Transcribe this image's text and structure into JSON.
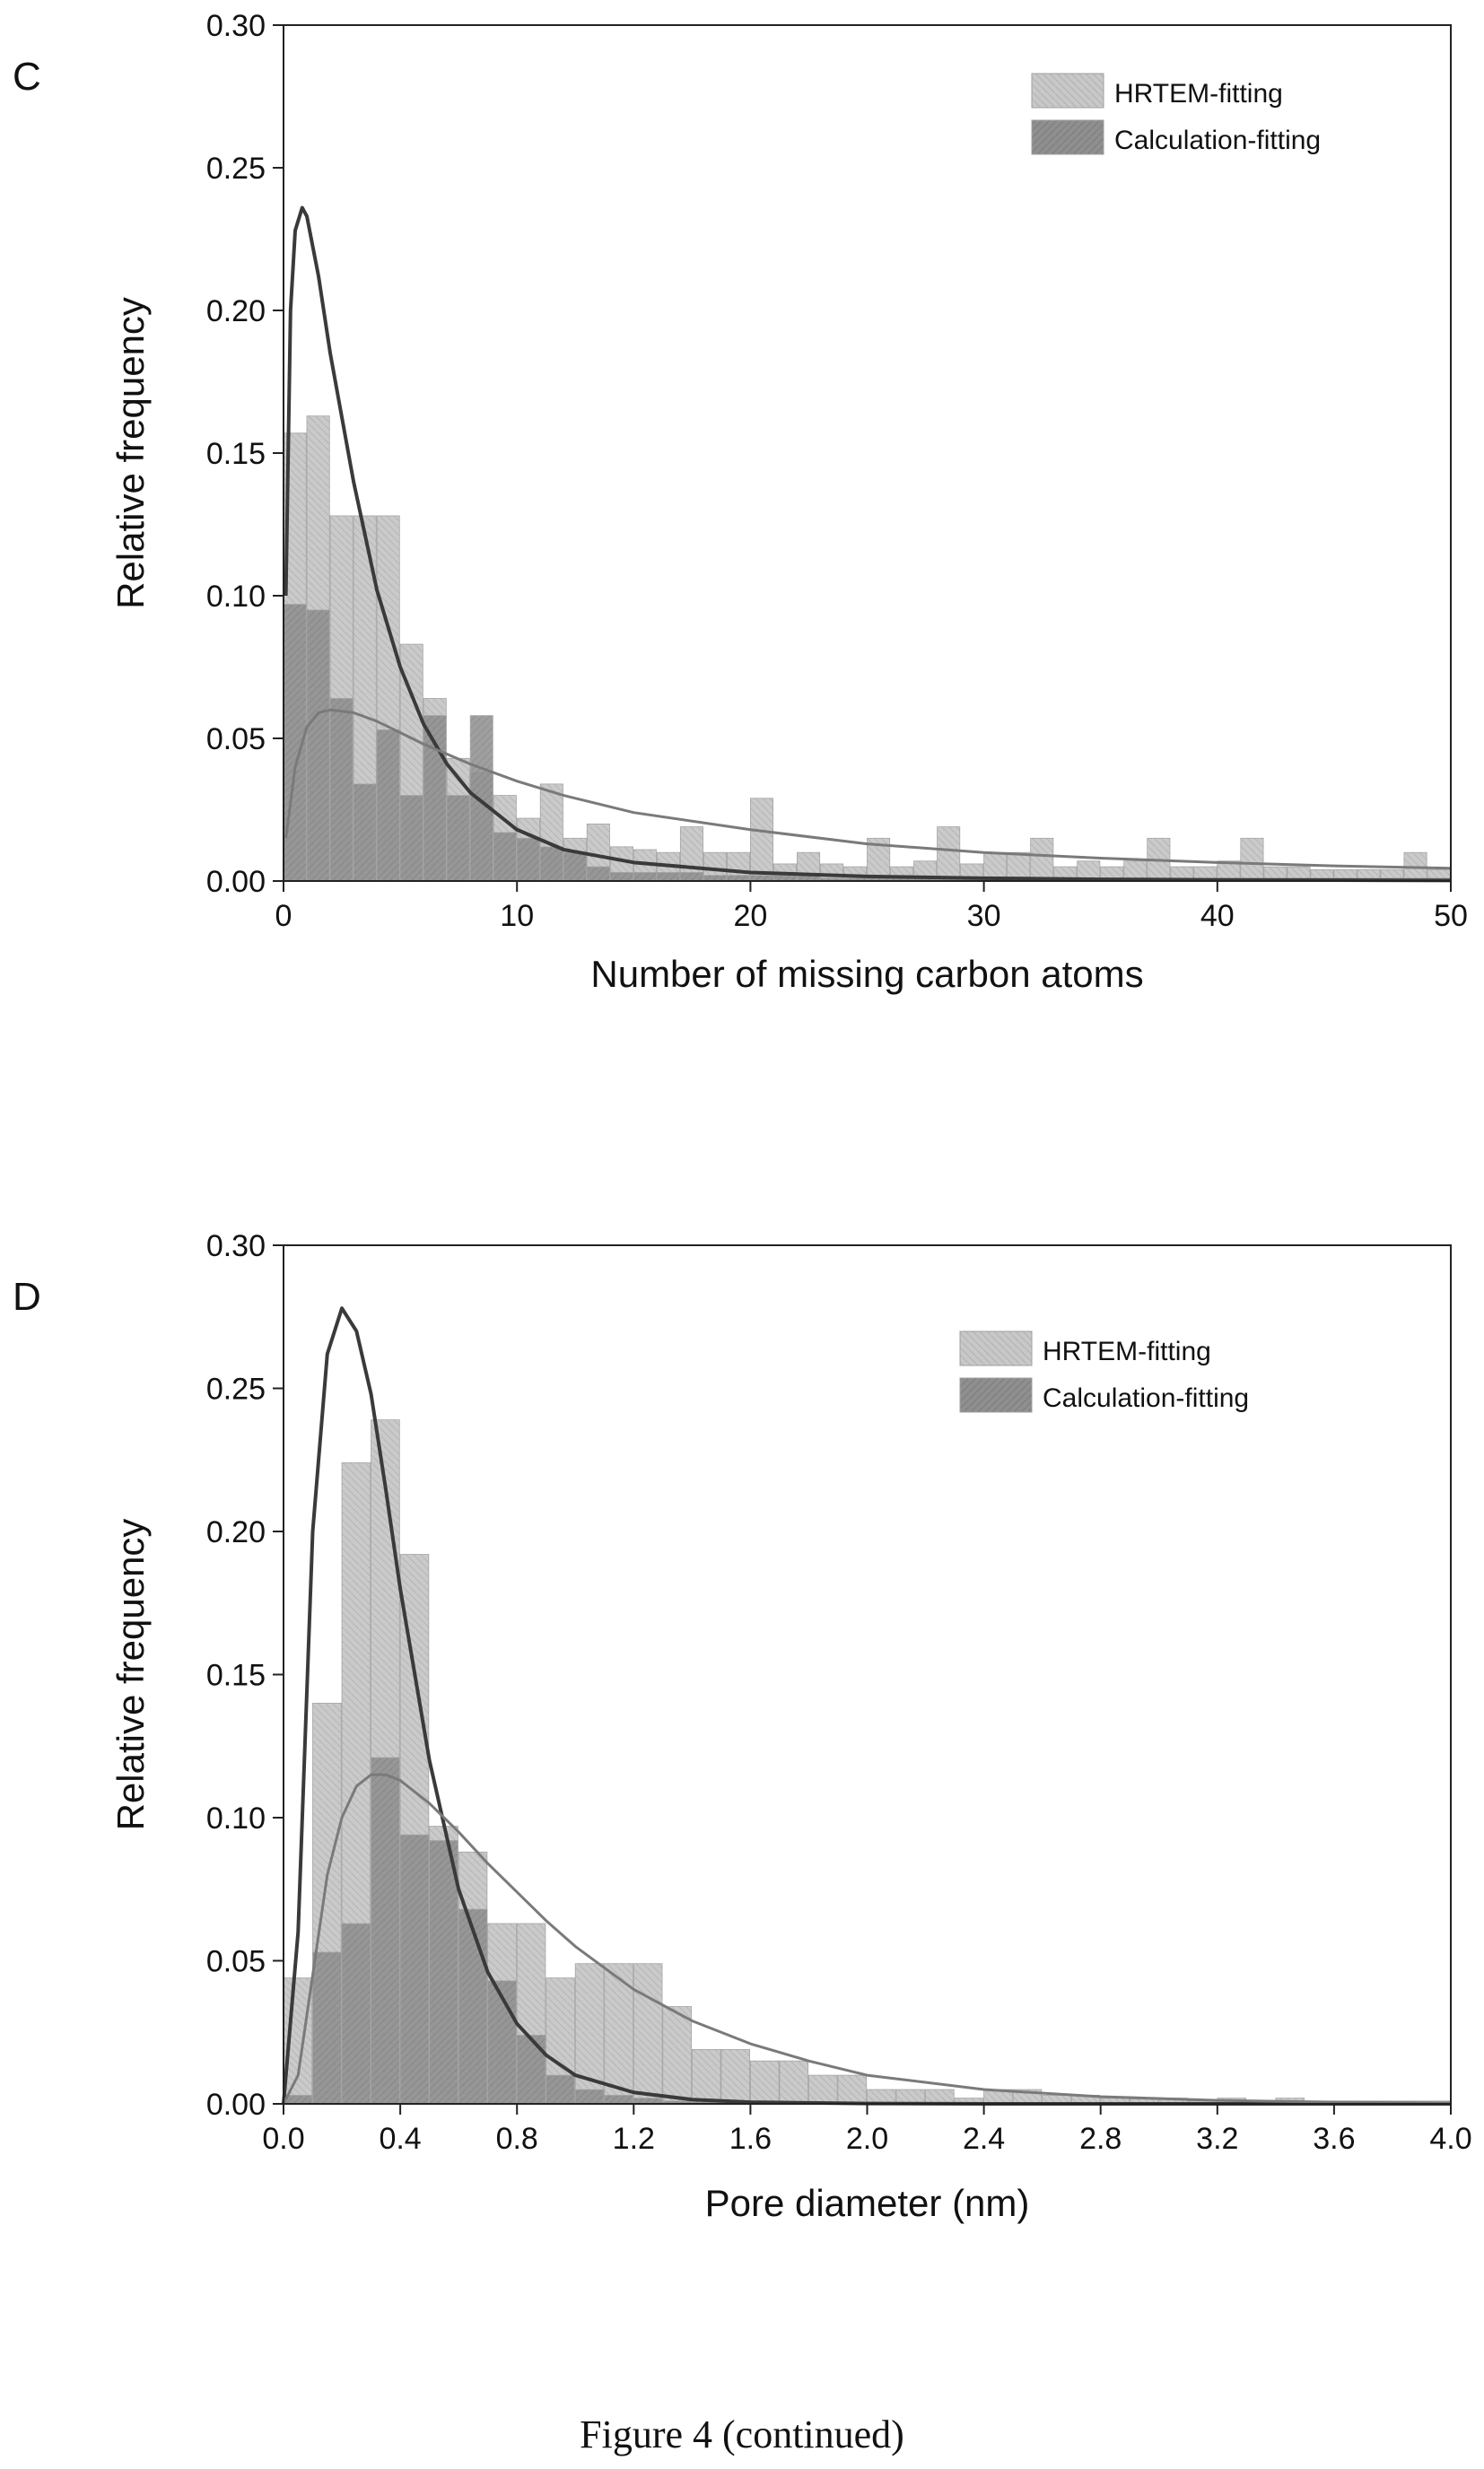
{
  "caption": "Figure 4 (continued)",
  "colors": {
    "hrtem_bar": "#c8c8c8",
    "calc_bar": "#8f8f8f",
    "hrtem_curve": "#3a3a3a",
    "calc_curve": "#7a7a7a",
    "axis": "#222222"
  },
  "chart_data": [
    {
      "type": "bar",
      "panel_label": "C",
      "xlabel": "Number of missing carbon atoms",
      "ylabel": "Relative frequency",
      "xlim": [
        0,
        50
      ],
      "ylim": [
        0,
        0.3
      ],
      "xticks": [
        0,
        10,
        20,
        30,
        40,
        50
      ],
      "xtick_labels": [
        "0",
        "10",
        "20",
        "30",
        "40",
        "50"
      ],
      "yticks": [
        0,
        0.05,
        0.1,
        0.15,
        0.2,
        0.25,
        0.3
      ],
      "ytick_labels": [
        "0.00",
        "0.05",
        "0.10",
        "0.15",
        "0.20",
        "0.25",
        "0.30"
      ],
      "legend_position": "top-right",
      "bin_width": 1,
      "series": [
        {
          "name": "HRTEM-fitting",
          "bin_starts": [
            0,
            1,
            2,
            3,
            4,
            5,
            6,
            7,
            8,
            9,
            10,
            11,
            12,
            13,
            14,
            15,
            16,
            17,
            18,
            19,
            20,
            21,
            22,
            23,
            24,
            25,
            26,
            27,
            28,
            29,
            30,
            31,
            32,
            33,
            34,
            35,
            36,
            37,
            38,
            39,
            40,
            41,
            42,
            43,
            44,
            45,
            46,
            47,
            48,
            49
          ],
          "values": [
            0.157,
            0.163,
            0.128,
            0.128,
            0.128,
            0.083,
            0.064,
            0.043,
            0.038,
            0.03,
            0.022,
            0.034,
            0.015,
            0.02,
            0.012,
            0.011,
            0.01,
            0.019,
            0.01,
            0.01,
            0.029,
            0.006,
            0.01,
            0.006,
            0.005,
            0.015,
            0.005,
            0.007,
            0.019,
            0.006,
            0.01,
            0.01,
            0.015,
            0.005,
            0.007,
            0.005,
            0.007,
            0.015,
            0.005,
            0.005,
            0.007,
            0.015,
            0.005,
            0.005,
            0.004,
            0.004,
            0.004,
            0.004,
            0.01,
            0.004
          ],
          "fit_curve_x": [
            0.1,
            0.3,
            0.5,
            0.8,
            1.0,
            1.5,
            2,
            3,
            4,
            5,
            6,
            7,
            8,
            10,
            12,
            15,
            20,
            25,
            30,
            35,
            40,
            45,
            50
          ],
          "fit_curve_y": [
            0.1,
            0.2,
            0.228,
            0.236,
            0.233,
            0.212,
            0.185,
            0.14,
            0.102,
            0.075,
            0.055,
            0.041,
            0.031,
            0.018,
            0.011,
            0.0065,
            0.003,
            0.0016,
            0.001,
            0.0006,
            0.0004,
            0.0003,
            0.0002
          ]
        },
        {
          "name": "Calculation-fitting",
          "bin_starts": [
            0,
            1,
            2,
            3,
            4,
            5,
            6,
            7,
            8,
            9,
            10,
            11,
            12,
            13,
            14,
            15,
            16,
            17,
            18,
            19,
            20,
            21,
            22,
            23,
            24,
            25,
            26,
            27,
            28,
            29,
            30,
            31,
            32,
            33,
            34,
            35,
            36,
            37,
            38,
            39,
            40,
            41,
            42,
            43,
            44,
            45,
            46,
            47,
            48,
            49
          ],
          "values": [
            0.097,
            0.095,
            0.064,
            0.034,
            0.053,
            0.03,
            0.058,
            0.03,
            0.058,
            0.017,
            0.015,
            0.012,
            0.01,
            0.005,
            0.003,
            0.003,
            0.003,
            0.003,
            0.002,
            0.002,
            0.002,
            0.002,
            0.002,
            0.001,
            0.001,
            0.001,
            0.001,
            0.001,
            0.001,
            0.001,
            0.001,
            0.001,
            0.001,
            0.001,
            0.001,
            0.001,
            0.001,
            0.001,
            0.001,
            0.001,
            0.001,
            0.001,
            0.001,
            0.001,
            0.001,
            0.001,
            0.001,
            0.001,
            0.001,
            0.001
          ],
          "fit_curve_x": [
            0.1,
            0.5,
            1,
            1.5,
            2,
            3,
            4,
            5,
            6,
            8,
            10,
            12,
            15,
            20,
            25,
            30,
            35,
            40,
            45,
            50
          ],
          "fit_curve_y": [
            0.015,
            0.04,
            0.054,
            0.059,
            0.06,
            0.059,
            0.056,
            0.052,
            0.048,
            0.041,
            0.035,
            0.03,
            0.024,
            0.018,
            0.013,
            0.01,
            0.008,
            0.0065,
            0.0053,
            0.0045
          ]
        }
      ]
    },
    {
      "type": "bar",
      "panel_label": "D",
      "xlabel": "Pore diameter (nm)",
      "ylabel": "Relative frequency",
      "xlim": [
        0,
        4.0
      ],
      "ylim": [
        0,
        0.3
      ],
      "xticks": [
        0,
        0.4,
        0.8,
        1.2,
        1.6,
        2.0,
        2.4,
        2.8,
        3.2,
        3.6,
        4.0
      ],
      "xtick_labels": [
        "0.0",
        "0.4",
        "0.8",
        "1.2",
        "1.6",
        "2.0",
        "2.4",
        "2.8",
        "3.2",
        "3.6",
        "4.0"
      ],
      "yticks": [
        0,
        0.05,
        0.1,
        0.15,
        0.2,
        0.25,
        0.3
      ],
      "ytick_labels": [
        "0.00",
        "0.05",
        "0.10",
        "0.15",
        "0.20",
        "0.25",
        "0.30"
      ],
      "legend_position": "top-right",
      "bin_width": 0.1,
      "series": [
        {
          "name": "HRTEM-fitting",
          "bin_starts": [
            0.0,
            0.1,
            0.2,
            0.3,
            0.4,
            0.5,
            0.6,
            0.7,
            0.8,
            0.9,
            1.0,
            1.1,
            1.2,
            1.3,
            1.4,
            1.5,
            1.6,
            1.7,
            1.8,
            1.9,
            2.0,
            2.1,
            2.2,
            2.3,
            2.4,
            2.5,
            2.6,
            2.7,
            2.8,
            2.9,
            3.0,
            3.1,
            3.2,
            3.3,
            3.4,
            3.5,
            3.6,
            3.7,
            3.8,
            3.9
          ],
          "values": [
            0.044,
            0.14,
            0.224,
            0.239,
            0.192,
            0.097,
            0.088,
            0.063,
            0.063,
            0.044,
            0.049,
            0.049,
            0.049,
            0.034,
            0.019,
            0.019,
            0.015,
            0.015,
            0.01,
            0.01,
            0.005,
            0.005,
            0.005,
            0.002,
            0.005,
            0.005,
            0.003,
            0.003,
            0.002,
            0.002,
            0.002,
            0.001,
            0.002,
            0.001,
            0.002,
            0.001,
            0.001,
            0.001,
            0.001,
            0.001
          ],
          "fit_curve_x": [
            0.0,
            0.05,
            0.1,
            0.15,
            0.2,
            0.25,
            0.3,
            0.35,
            0.4,
            0.5,
            0.6,
            0.7,
            0.8,
            0.9,
            1.0,
            1.2,
            1.4,
            1.6,
            2.0,
            2.4,
            3.0,
            3.5,
            4.0
          ],
          "fit_curve_y": [
            0.0,
            0.06,
            0.2,
            0.262,
            0.278,
            0.27,
            0.248,
            0.215,
            0.18,
            0.12,
            0.075,
            0.046,
            0.028,
            0.017,
            0.01,
            0.004,
            0.0015,
            0.0006,
            0.0001,
            0.0,
            0.0,
            0.0,
            0.0
          ]
        },
        {
          "name": "Calculation-fitting",
          "bin_starts": [
            0.0,
            0.1,
            0.2,
            0.3,
            0.4,
            0.5,
            0.6,
            0.7,
            0.8,
            0.9,
            1.0,
            1.1,
            1.2,
            1.3,
            1.4,
            1.5,
            1.6,
            1.7,
            1.8,
            1.9,
            2.0,
            2.1,
            2.2,
            2.3,
            2.4,
            2.5,
            2.6,
            2.7,
            2.8,
            2.9,
            3.0,
            3.1,
            3.2,
            3.3,
            3.4,
            3.5,
            3.6,
            3.7,
            3.8,
            3.9
          ],
          "values": [
            0.003,
            0.053,
            0.063,
            0.121,
            0.094,
            0.092,
            0.068,
            0.043,
            0.024,
            0.01,
            0.005,
            0.003,
            0.002,
            0.001,
            0.001,
            0.001,
            0.001,
            0.0,
            0.0,
            0.0,
            0.0,
            0.0,
            0.0,
            0.0,
            0.0,
            0.0,
            0.0,
            0.0,
            0.0,
            0.0,
            0.0,
            0.0,
            0.0,
            0.0,
            0.0,
            0.0,
            0.0,
            0.0,
            0.0,
            0.0
          ],
          "fit_curve_x": [
            0.0,
            0.05,
            0.1,
            0.15,
            0.2,
            0.25,
            0.3,
            0.35,
            0.4,
            0.5,
            0.6,
            0.7,
            0.8,
            0.9,
            1.0,
            1.2,
            1.4,
            1.6,
            1.8,
            2.0,
            2.4,
            2.8,
            3.2,
            3.6,
            4.0
          ],
          "fit_curve_y": [
            0.0,
            0.01,
            0.045,
            0.08,
            0.1,
            0.111,
            0.115,
            0.115,
            0.113,
            0.105,
            0.095,
            0.084,
            0.074,
            0.064,
            0.055,
            0.04,
            0.029,
            0.021,
            0.015,
            0.01,
            0.005,
            0.0025,
            0.0012,
            0.0006,
            0.0003
          ]
        }
      ]
    }
  ]
}
